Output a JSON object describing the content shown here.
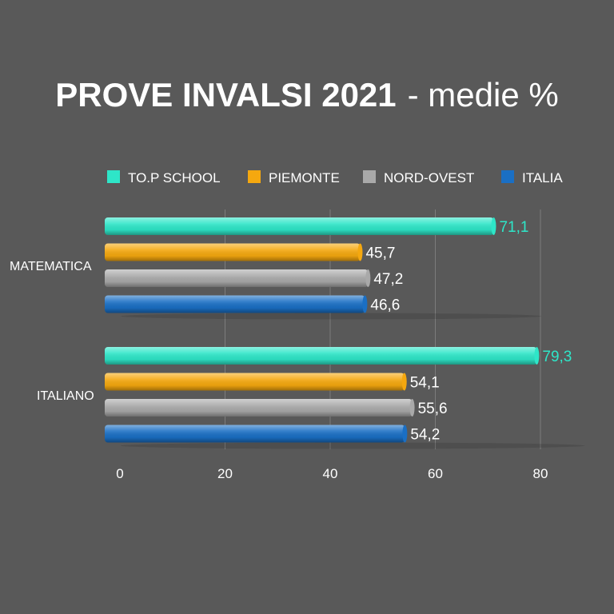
{
  "chart_data": {
    "type": "bar",
    "orientation": "horizontal",
    "title": "PROVE INVALSI 2021",
    "subtitle": "- medie %",
    "categories": [
      "MATEMATICA",
      "ITALIANO"
    ],
    "series": [
      {
        "name": "TO.P SCHOOL",
        "color": "#2ee6c8",
        "values": [
          71.1,
          79.3
        ],
        "labels": [
          "71,1",
          "79,3"
        ]
      },
      {
        "name": "PIEMONTE",
        "color": "#f5a80f",
        "values": [
          45.7,
          54.1
        ],
        "labels": [
          "45,7",
          "54,1"
        ]
      },
      {
        "name": "NORD-OVEST",
        "color": "#a9a9a9",
        "values": [
          47.2,
          55.6
        ],
        "labels": [
          "47,2",
          "55,6"
        ]
      },
      {
        "name": "ITALIA",
        "color": "#1a6fc4",
        "values": [
          46.6,
          54.2
        ],
        "labels": [
          "46,6",
          "54,2"
        ]
      }
    ],
    "xlim": [
      0,
      80
    ],
    "xticks": [
      0,
      20,
      40,
      60,
      80
    ],
    "grid": true,
    "legend": "top"
  }
}
